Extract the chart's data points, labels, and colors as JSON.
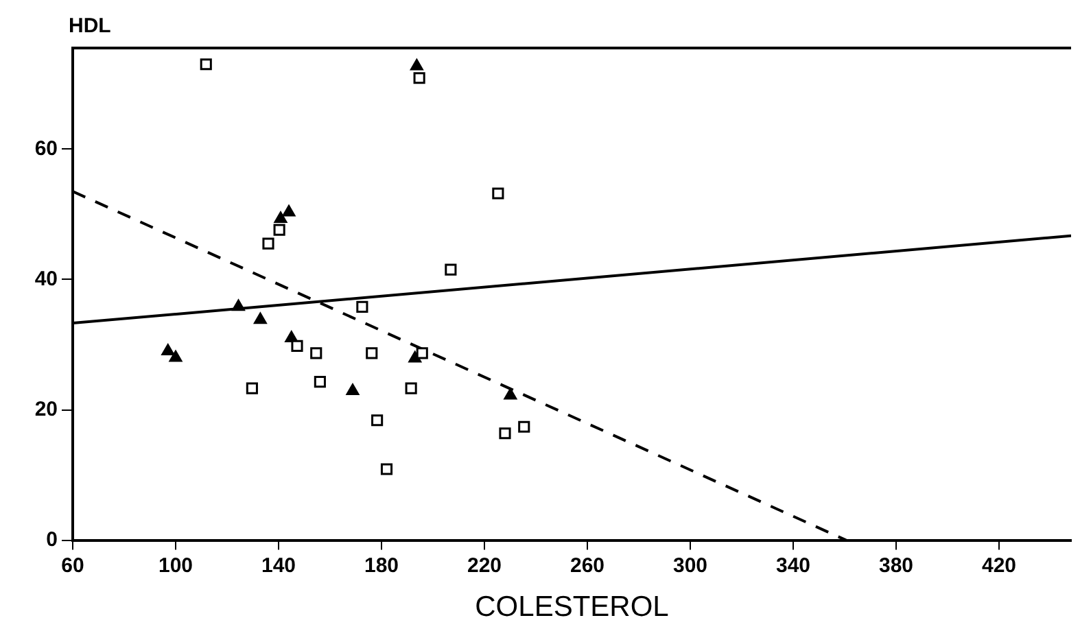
{
  "chart_data": {
    "type": "scatter",
    "xlabel": "COLESTEROL",
    "ylabel": "HDL",
    "xlim": [
      60,
      448
    ],
    "ylim": [
      0,
      75.5
    ],
    "xticks": [
      60,
      100,
      140,
      180,
      220,
      260,
      300,
      340,
      380,
      420
    ],
    "yticks": [
      0,
      20,
      40,
      60
    ],
    "grid": false,
    "legend": false,
    "series": [
      {
        "marker": "square",
        "color": "#000000",
        "x": [
          111.8,
          194.7,
          225.3,
          140.3,
          136,
          206.9,
          172.5,
          147.2,
          154.6,
          176.2,
          195.8,
          129.7,
          156.1,
          191.5,
          178.3,
          182,
          228,
          235.4
        ],
        "values": [
          73.0,
          70.9,
          53.2,
          47.6,
          45.5,
          41.5,
          35.8,
          29.8,
          28.7,
          28.7,
          28.7,
          23.3,
          24.3,
          23.3,
          18.4,
          10.9,
          16.4,
          17.4
        ]
      },
      {
        "marker": "triangle",
        "color": "#000000",
        "x": [
          193.7,
          144,
          140.8,
          124.4,
          132.9,
          97,
          100,
          145,
          168.8,
          193,
          230.1
        ],
        "values": [
          72.7,
          50.3,
          49.3,
          35.8,
          33.8,
          29,
          28,
          31,
          22.9,
          27.9,
          22.2
        ]
      },
      {
        "type": "line",
        "marker": "none",
        "line_style": "solid",
        "color": "#000000",
        "x": [
          60,
          448
        ],
        "values": [
          33.3,
          46.7
        ]
      },
      {
        "type": "line",
        "marker": "none",
        "line_style": "dashed",
        "color": "#000000",
        "x": [
          60,
          360.6
        ],
        "values": [
          53.5,
          0
        ]
      }
    ]
  }
}
